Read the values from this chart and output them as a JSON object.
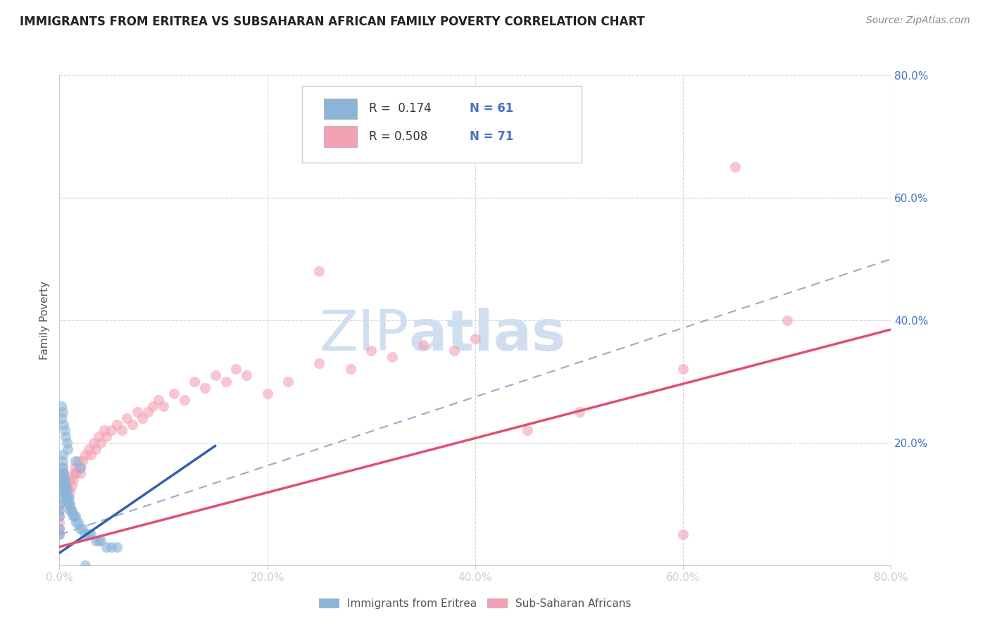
{
  "title": "IMMIGRANTS FROM ERITREA VS SUBSAHARAN AFRICAN FAMILY POVERTY CORRELATION CHART",
  "source": "Source: ZipAtlas.com",
  "ylabel": "Family Poverty",
  "legend_labels": [
    "Immigrants from Eritrea",
    "Sub-Saharan Africans"
  ],
  "legend_R": [
    "0.174",
    "0.508"
  ],
  "legend_N": [
    "61",
    "71"
  ],
  "xlim": [
    0.0,
    0.8
  ],
  "ylim": [
    0.0,
    0.8
  ],
  "xtick_vals": [
    0.0,
    0.2,
    0.4,
    0.6,
    0.8
  ],
  "ytick_vals": [
    0.2,
    0.4,
    0.6,
    0.8
  ],
  "background_color": "#ffffff",
  "grid_color": "#cccccc",
  "color_blue": "#8ab4d8",
  "color_pink": "#f4a0b5",
  "watermark_color": "#d0dff0",
  "eritrea_trend_y_start": 0.02,
  "eritrea_trend_y_end": 0.195,
  "subsaharan_trend_y_start": 0.03,
  "subsaharan_trend_y_end": 0.385,
  "dashed_trend_y_start": 0.05,
  "dashed_trend_y_end": 0.5,
  "eritrea_x": [
    0.0,
    0.0,
    0.0,
    0.0,
    0.0,
    0.0,
    0.0,
    0.0,
    0.0,
    0.0,
    0.003,
    0.003,
    0.003,
    0.003,
    0.003,
    0.004,
    0.004,
    0.004,
    0.005,
    0.005,
    0.005,
    0.006,
    0.006,
    0.006,
    0.007,
    0.007,
    0.008,
    0.008,
    0.009,
    0.009,
    0.01,
    0.01,
    0.011,
    0.012,
    0.013,
    0.014,
    0.015,
    0.016,
    0.018,
    0.02,
    0.022,
    0.025,
    0.028,
    0.03,
    0.035,
    0.038,
    0.04,
    0.045,
    0.05,
    0.055,
    0.002,
    0.002,
    0.003,
    0.004,
    0.005,
    0.006,
    0.007,
    0.008,
    0.015,
    0.02,
    0.025
  ],
  "eritrea_y": [
    0.05,
    0.06,
    0.08,
    0.09,
    0.1,
    0.11,
    0.12,
    0.13,
    0.14,
    0.15,
    0.14,
    0.15,
    0.16,
    0.17,
    0.18,
    0.13,
    0.14,
    0.15,
    0.12,
    0.13,
    0.14,
    0.11,
    0.12,
    0.13,
    0.11,
    0.12,
    0.1,
    0.11,
    0.1,
    0.11,
    0.09,
    0.1,
    0.09,
    0.09,
    0.08,
    0.08,
    0.08,
    0.07,
    0.07,
    0.06,
    0.06,
    0.05,
    0.05,
    0.05,
    0.04,
    0.04,
    0.04,
    0.03,
    0.03,
    0.03,
    0.24,
    0.26,
    0.25,
    0.23,
    0.22,
    0.21,
    0.2,
    0.19,
    0.17,
    0.16,
    0.0
  ],
  "subsaharan_x": [
    0.0,
    0.0,
    0.0,
    0.0,
    0.0,
    0.0,
    0.003,
    0.003,
    0.004,
    0.004,
    0.005,
    0.005,
    0.006,
    0.007,
    0.008,
    0.008,
    0.01,
    0.01,
    0.012,
    0.013,
    0.014,
    0.015,
    0.016,
    0.018,
    0.02,
    0.02,
    0.022,
    0.025,
    0.028,
    0.03,
    0.033,
    0.035,
    0.038,
    0.04,
    0.043,
    0.045,
    0.05,
    0.055,
    0.06,
    0.065,
    0.07,
    0.075,
    0.08,
    0.085,
    0.09,
    0.095,
    0.1,
    0.11,
    0.12,
    0.13,
    0.14,
    0.15,
    0.16,
    0.17,
    0.18,
    0.2,
    0.22,
    0.25,
    0.28,
    0.3,
    0.32,
    0.35,
    0.38,
    0.4,
    0.45,
    0.5,
    0.6,
    0.65,
    0.7,
    0.6,
    0.25
  ],
  "subsaharan_y": [
    0.05,
    0.06,
    0.07,
    0.08,
    0.09,
    0.1,
    0.14,
    0.16,
    0.13,
    0.15,
    0.12,
    0.14,
    0.13,
    0.12,
    0.11,
    0.13,
    0.12,
    0.14,
    0.13,
    0.14,
    0.15,
    0.16,
    0.15,
    0.17,
    0.15,
    0.16,
    0.17,
    0.18,
    0.19,
    0.18,
    0.2,
    0.19,
    0.21,
    0.2,
    0.22,
    0.21,
    0.22,
    0.23,
    0.22,
    0.24,
    0.23,
    0.25,
    0.24,
    0.25,
    0.26,
    0.27,
    0.26,
    0.28,
    0.27,
    0.3,
    0.29,
    0.31,
    0.3,
    0.32,
    0.31,
    0.28,
    0.3,
    0.33,
    0.32,
    0.35,
    0.34,
    0.36,
    0.35,
    0.37,
    0.22,
    0.25,
    0.32,
    0.65,
    0.4,
    0.05,
    0.48
  ]
}
